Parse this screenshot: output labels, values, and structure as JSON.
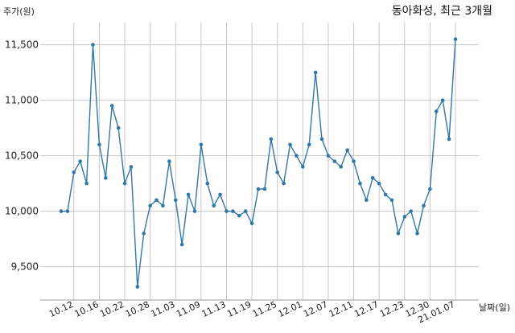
{
  "chart_data": {
    "type": "line",
    "title": "동아화성, 최근 3개월",
    "ylabel": "주가(원)",
    "xlabel": "날짜(일)",
    "ylim": [
      9200,
      11700
    ],
    "yticks": [
      9500,
      10000,
      10500,
      11000,
      11500
    ],
    "ytick_labels": [
      "9,500",
      "10,000",
      "10,500",
      "11,000",
      "11,500"
    ],
    "xtick_labels": [
      "10.12",
      "10.16",
      "10.22",
      "10.28",
      "11.03",
      "11.09",
      "11.13",
      "11.19",
      "11.25",
      "12.01",
      "12.07",
      "12.11",
      "12.17",
      "12.23",
      "12.30",
      "21.01.07"
    ],
    "xtick_positions": [
      2,
      6,
      10,
      14,
      18,
      22,
      26,
      30,
      34,
      38,
      42,
      46,
      50,
      54,
      58,
      62
    ],
    "grid": true,
    "line_color": "#3178a8",
    "series": [
      {
        "values": [
          10000,
          10000,
          10350,
          10450,
          10250,
          11500,
          10600,
          10300,
          10950,
          10750,
          10250,
          10400,
          9320,
          9800,
          10050,
          10100,
          10050,
          10450,
          10100,
          9700,
          10150,
          10000,
          10600,
          10250,
          10050,
          10150,
          10000,
          10000,
          9960,
          10000,
          9890,
          10200,
          10200,
          10650,
          10350,
          10250,
          10600,
          10500,
          10400,
          10600,
          11250,
          10650,
          10500,
          10450,
          10400,
          10550,
          10450,
          10250,
          10100,
          10300,
          10250,
          10150,
          10100,
          9800,
          9950,
          10000,
          9800,
          10050,
          10200,
          10900,
          11000,
          10650,
          11550
        ]
      }
    ]
  }
}
